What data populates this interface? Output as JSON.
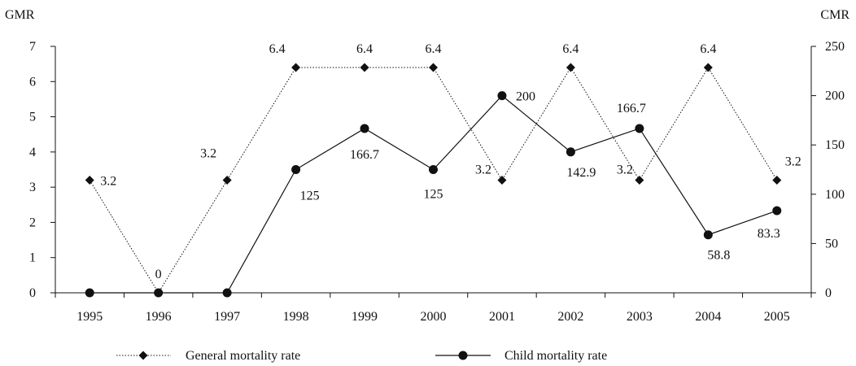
{
  "chart_data": {
    "type": "line",
    "categories": [
      "1995",
      "1996",
      "1997",
      "1998",
      "1999",
      "2000",
      "2001",
      "2002",
      "2003",
      "2004",
      "2005"
    ],
    "left_axis": {
      "title": "GMR",
      "ylim": [
        0,
        7
      ],
      "ticks": [
        "0",
        "1",
        "2",
        "3",
        "4",
        "5",
        "6",
        "7"
      ]
    },
    "right_axis": {
      "title": "CMR",
      "ylim": [
        0,
        250
      ],
      "ticks": [
        "0",
        "50",
        "100",
        "150",
        "200",
        "250"
      ]
    },
    "grid": false,
    "legend_position": "bottom",
    "series": [
      {
        "name": "General mortality rate",
        "axis": "left",
        "style": "dotted",
        "marker": "diamond",
        "values": [
          3.2,
          0,
          3.2,
          6.4,
          6.4,
          6.4,
          3.2,
          6.4,
          3.2,
          6.4,
          3.2
        ],
        "labels": [
          "3.2",
          "0",
          "3.2",
          "6.4",
          "6.4",
          "6.4",
          "3.2",
          "6.4",
          "3.2",
          "6.4",
          "3.2"
        ]
      },
      {
        "name": "Child mortality rate",
        "axis": "right",
        "style": "solid",
        "marker": "circle",
        "values": [
          0,
          0,
          0,
          125,
          166.7,
          125,
          200,
          142.9,
          166.7,
          58.8,
          83.3
        ],
        "labels": [
          "",
          "",
          "",
          "125",
          "166.7",
          "125",
          "200",
          "142.9",
          "166.7",
          "58.8",
          "83.3"
        ]
      }
    ]
  }
}
